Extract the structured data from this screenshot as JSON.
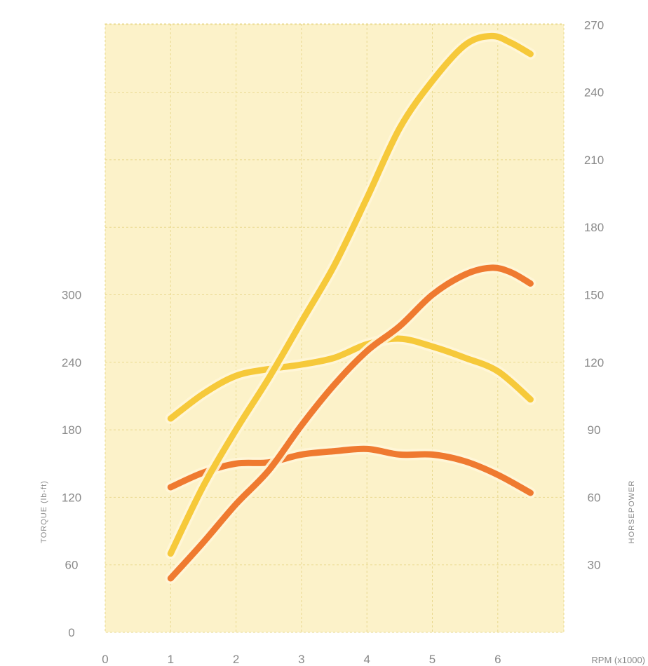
{
  "chart_data": {
    "type": "line",
    "x_label": "RPM (x1000)",
    "y_left_label": "TORQUE (lb-ft)",
    "y_right_label": "HORSEPOWER",
    "x_ticks": [
      "0",
      "1",
      "2",
      "3",
      "4",
      "5",
      "6"
    ],
    "y_left_ticks": [
      "0",
      "60",
      "120",
      "180",
      "240",
      "300"
    ],
    "y_right_ticks": [
      "30",
      "60",
      "90",
      "120",
      "150",
      "180",
      "210",
      "240",
      "270"
    ],
    "x_range": [
      0,
      7
    ],
    "y_left_range": [
      0,
      360
    ],
    "y_right_range": [
      0,
      270
    ],
    "grid": true,
    "series": [
      {
        "axis": "left",
        "color": "#f6c93a",
        "points": [
          [
            1.0,
            190
          ],
          [
            1.5,
            212
          ],
          [
            2.0,
            228
          ],
          [
            2.5,
            234
          ],
          [
            3.0,
            238
          ],
          [
            3.5,
            244
          ],
          [
            4.0,
            256
          ],
          [
            4.5,
            261
          ],
          [
            5.0,
            254
          ],
          [
            5.5,
            244
          ],
          [
            6.0,
            232
          ],
          [
            6.5,
            207
          ]
        ]
      },
      {
        "axis": "left",
        "color": "#ef7a30",
        "points": [
          [
            1.0,
            129
          ],
          [
            1.5,
            142
          ],
          [
            2.0,
            150
          ],
          [
            2.5,
            151
          ],
          [
            3.0,
            158
          ],
          [
            3.5,
            161
          ],
          [
            4.0,
            163
          ],
          [
            4.5,
            158
          ],
          [
            5.0,
            158
          ],
          [
            5.5,
            152
          ],
          [
            6.0,
            140
          ],
          [
            6.5,
            124
          ]
        ]
      },
      {
        "axis": "right",
        "color": "#f6c93a",
        "points": [
          [
            1.0,
            35
          ],
          [
            1.5,
            65
          ],
          [
            2.0,
            90
          ],
          [
            2.5,
            113
          ],
          [
            3.0,
            138
          ],
          [
            3.5,
            163
          ],
          [
            4.0,
            193
          ],
          [
            4.5,
            224
          ],
          [
            5.0,
            245
          ],
          [
            5.5,
            261
          ],
          [
            5.9,
            265
          ],
          [
            6.2,
            262
          ],
          [
            6.5,
            257
          ]
        ]
      },
      {
        "axis": "right",
        "color": "#ef7a30",
        "points": [
          [
            1.0,
            24
          ],
          [
            1.5,
            40
          ],
          [
            2.0,
            57
          ],
          [
            2.5,
            72
          ],
          [
            3.0,
            92
          ],
          [
            3.5,
            110
          ],
          [
            4.0,
            125
          ],
          [
            4.5,
            136
          ],
          [
            5.0,
            150
          ],
          [
            5.5,
            159
          ],
          [
            5.9,
            162
          ],
          [
            6.2,
            160
          ],
          [
            6.5,
            155
          ]
        ]
      }
    ]
  }
}
